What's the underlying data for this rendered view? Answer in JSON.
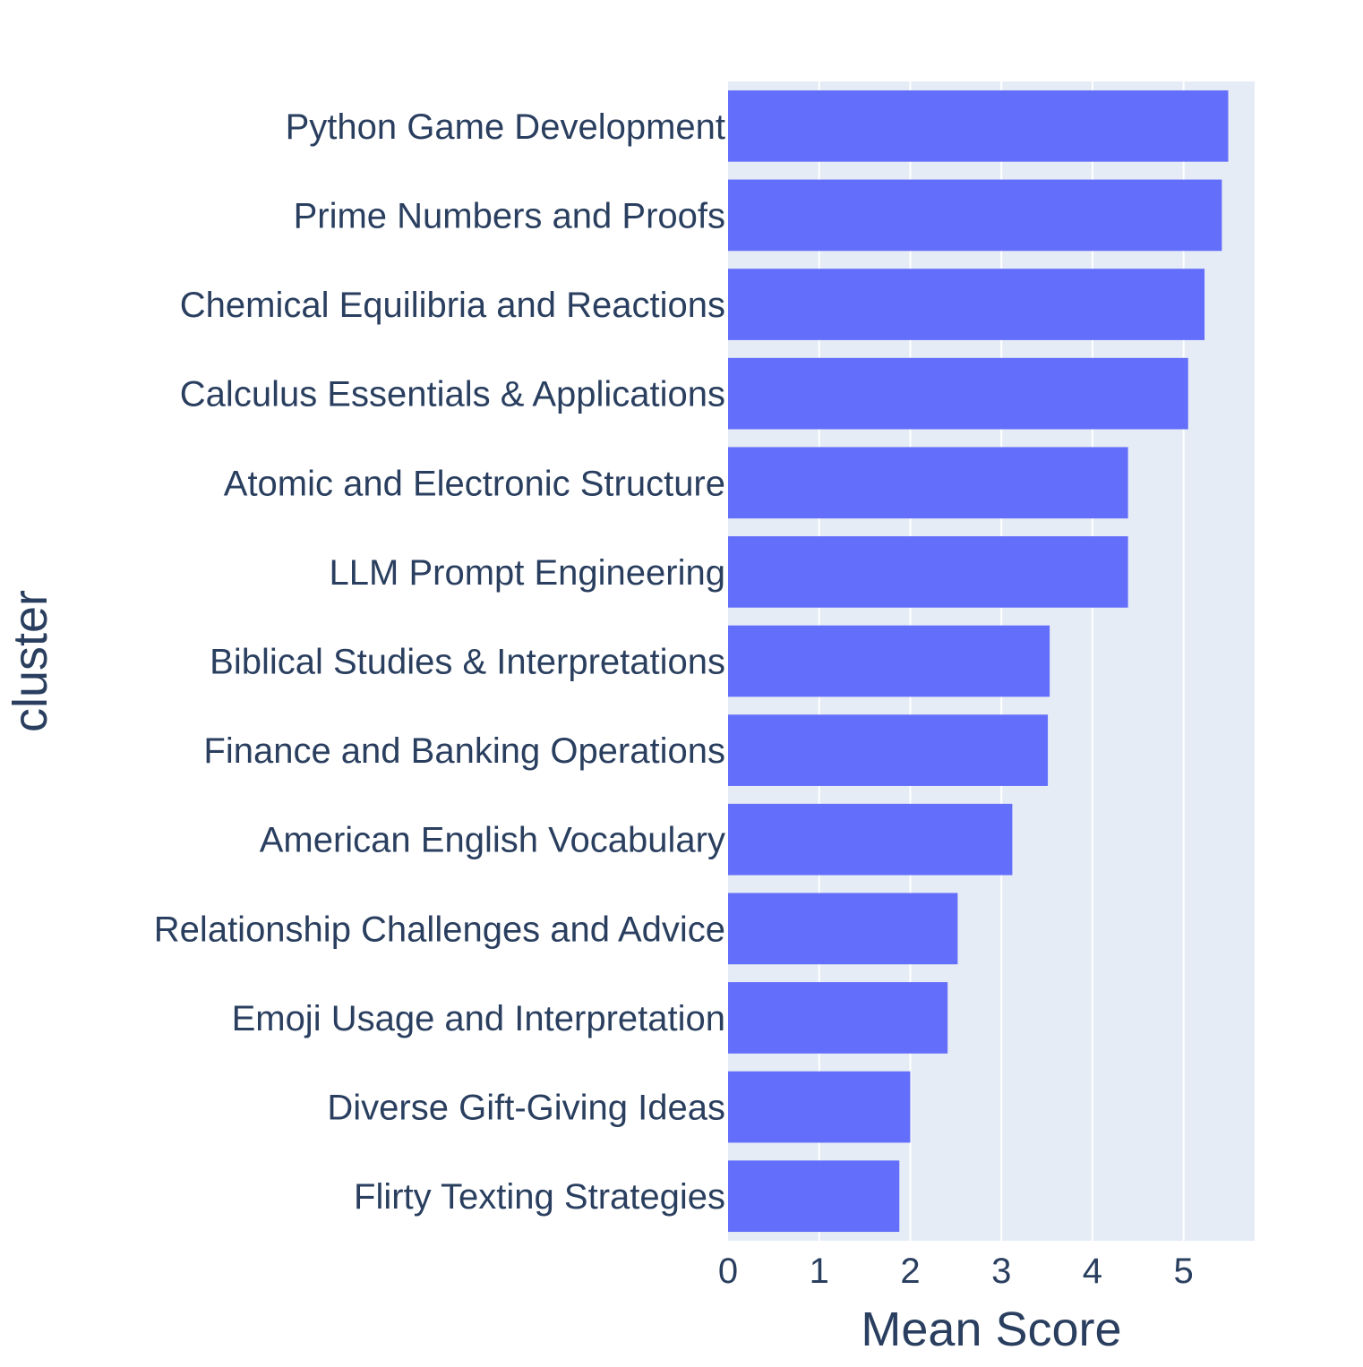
{
  "chart_data": {
    "type": "bar",
    "orientation": "horizontal",
    "xlabel": "Mean Score",
    "ylabel": "cluster",
    "xlim": [
      0,
      5.78
    ],
    "xticks": [
      0,
      1,
      2,
      3,
      4,
      5
    ],
    "grid": true,
    "colors": {
      "bar": "#636efa",
      "plot_bg": "#e5ecf6",
      "grid": "#ffffff",
      "text": "#2a3f5f"
    },
    "categories": [
      "Python Game Development",
      "Prime Numbers and Proofs",
      "Chemical Equilibria and Reactions",
      "Calculus Essentials & Applications",
      "Atomic and Electronic Structure",
      "LLM Prompt Engineering",
      "Biblical Studies & Interpretations",
      "Finance and Banking Operations",
      "American English Vocabulary",
      "Relationship Challenges and Advice",
      "Emoji Usage and Interpretation",
      "Diverse Gift-Giving Ideas",
      "Flirty Texting Strategies"
    ],
    "values": [
      5.49,
      5.42,
      5.23,
      5.05,
      4.39,
      4.39,
      3.53,
      3.51,
      3.12,
      2.52,
      2.41,
      2.0,
      1.88
    ]
  }
}
